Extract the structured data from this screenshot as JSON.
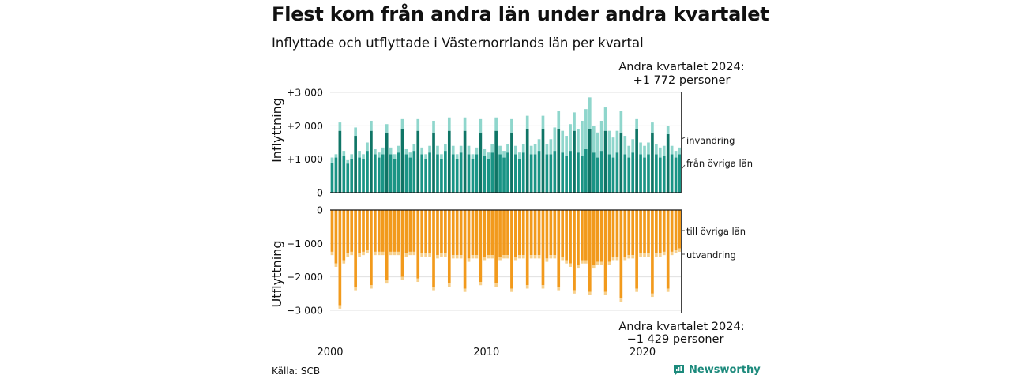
{
  "title": "Flest kom från andra län under andra kvartalet",
  "subtitle": "Inflyttade och utflyttade i Västernorrlands län per kvartal",
  "source": "Källa: SCB",
  "brand": "Newsworthy",
  "colors": {
    "in_other": "#1a9485",
    "in_other_highlight": "#0f7566",
    "in_immigration": "#8fd6cc",
    "out_other": "#f29a1c",
    "out_emigration": "#f7d08c",
    "brand": "#1c8a7c"
  },
  "chart_data": [
    {
      "type": "bar",
      "stacked": true,
      "ylabel": "Inflyttning",
      "ylim": [
        0,
        3000
      ],
      "yticks": [
        {
          "value": 0,
          "label": "0"
        },
        {
          "value": 1000,
          "label": "+1 000"
        },
        {
          "value": 2000,
          "label": "+2 000"
        },
        {
          "value": 3000,
          "label": "+3 000"
        }
      ],
      "legend": [
        "invandring",
        "från övriga län"
      ],
      "annotation": {
        "line1": "Andra kvartalet 2024:",
        "line2": "+1 772 personer"
      },
      "x_start": {
        "year": 2000,
        "quarter": 1
      },
      "series": [
        {
          "name": "från övriga län",
          "values": [
            900,
            1050,
            1850,
            1100,
            870,
            1000,
            1700,
            1050,
            1000,
            1250,
            1850,
            1150,
            1050,
            1150,
            1800,
            1150,
            1000,
            1200,
            1900,
            1150,
            1050,
            1250,
            1850,
            1150,
            1000,
            1200,
            1800,
            1150,
            1000,
            1250,
            1850,
            1150,
            1000,
            1200,
            1850,
            1150,
            1000,
            1150,
            1800,
            1100,
            1000,
            1200,
            1850,
            1150,
            1050,
            1200,
            1800,
            1150,
            1000,
            1200,
            1900,
            1150,
            1150,
            1250,
            1900,
            1150,
            1150,
            1250,
            1900,
            1200,
            1100,
            1250,
            1850,
            1200,
            1100,
            1300,
            1900,
            1200,
            1050,
            1250,
            1850,
            1150,
            1050,
            1200,
            1800,
            1150,
            1050,
            1200,
            1900,
            1150,
            1050,
            1150,
            1800,
            1150,
            1050,
            1100,
            1750,
            1150,
            1050,
            1150
          ]
        },
        {
          "name": "invandring",
          "values": [
            150,
            100,
            250,
            150,
            100,
            150,
            250,
            200,
            150,
            250,
            300,
            150,
            150,
            200,
            250,
            200,
            150,
            200,
            300,
            150,
            150,
            200,
            350,
            200,
            150,
            200,
            350,
            250,
            150,
            200,
            400,
            250,
            150,
            200,
            400,
            250,
            150,
            200,
            400,
            200,
            200,
            250,
            400,
            250,
            200,
            250,
            400,
            250,
            200,
            250,
            400,
            250,
            300,
            350,
            400,
            300,
            450,
            700,
            550,
            650,
            600,
            800,
            550,
            700,
            1050,
            1200,
            950,
            800,
            750,
            900,
            700,
            700,
            600,
            650,
            650,
            550,
            350,
            400,
            300,
            350,
            350,
            350,
            300,
            300,
            300,
            300,
            250,
            250,
            200,
            200
          ]
        }
      ]
    },
    {
      "type": "bar",
      "stacked": true,
      "ylabel": "Utflyttning",
      "ylim": [
        -3000,
        0
      ],
      "yticks": [
        {
          "value": 0,
          "label": "0"
        },
        {
          "value": -1000,
          "label": "−1 000"
        },
        {
          "value": -2000,
          "label": "−2 000"
        },
        {
          "value": -3000,
          "label": "−3 000"
        }
      ],
      "legend": [
        "till övriga län",
        "utvandring"
      ],
      "annotation": {
        "line1": "Andra kvartalet 2024:",
        "line2": "−1 429 personer"
      },
      "x_start": {
        "year": 2000,
        "quarter": 1
      },
      "xticks": [
        "2000",
        "2010",
        "2020"
      ],
      "series": [
        {
          "name": "till övriga län",
          "values": [
            -1250,
            -1600,
            -2850,
            -1500,
            -1300,
            -1250,
            -2300,
            -1300,
            -1250,
            -1200,
            -2250,
            -1250,
            -1250,
            -1250,
            -2100,
            -1250,
            -1250,
            -1250,
            -2000,
            -1300,
            -1250,
            -1250,
            -2050,
            -1300,
            -1300,
            -1300,
            -2300,
            -1350,
            -1300,
            -1300,
            -2200,
            -1350,
            -1350,
            -1350,
            -2350,
            -1450,
            -1350,
            -1350,
            -2150,
            -1400,
            -1350,
            -1350,
            -2200,
            -1400,
            -1350,
            -1350,
            -2350,
            -1400,
            -1350,
            -1350,
            -2250,
            -1350,
            -1350,
            -1350,
            -2250,
            -1450,
            -1350,
            -1350,
            -2300,
            -1400,
            -1500,
            -1600,
            -2400,
            -1650,
            -1500,
            -1500,
            -2450,
            -1650,
            -1550,
            -1550,
            -2450,
            -1550,
            -1400,
            -1400,
            -2650,
            -1400,
            -1350,
            -1350,
            -2350,
            -1300,
            -1300,
            -1300,
            -2500,
            -1300,
            -1300,
            -1250,
            -2350,
            -1250,
            -1200,
            -1150
          ]
        },
        {
          "name": "utvandring",
          "values": [
            -100,
            -100,
            -100,
            -100,
            -100,
            -100,
            -100,
            -100,
            -100,
            -100,
            -100,
            -100,
            -100,
            -100,
            -100,
            -100,
            -100,
            -100,
            -100,
            -100,
            -100,
            -100,
            -100,
            -100,
            -100,
            -100,
            -100,
            -100,
            -100,
            -100,
            -100,
            -100,
            -100,
            -100,
            -100,
            -100,
            -100,
            -100,
            -100,
            -100,
            -100,
            -100,
            -100,
            -100,
            -100,
            -100,
            -100,
            -100,
            -100,
            -100,
            -100,
            -100,
            -100,
            -100,
            -100,
            -100,
            -100,
            -100,
            -100,
            -100,
            -100,
            -100,
            -100,
            -100,
            -100,
            -100,
            -100,
            -100,
            -100,
            -100,
            -100,
            -100,
            -100,
            -100,
            -100,
            -100,
            -100,
            -100,
            -100,
            -100,
            -100,
            -100,
            -100,
            -100,
            -100,
            -100,
            -100,
            -100,
            -100,
            -100
          ]
        }
      ]
    }
  ]
}
